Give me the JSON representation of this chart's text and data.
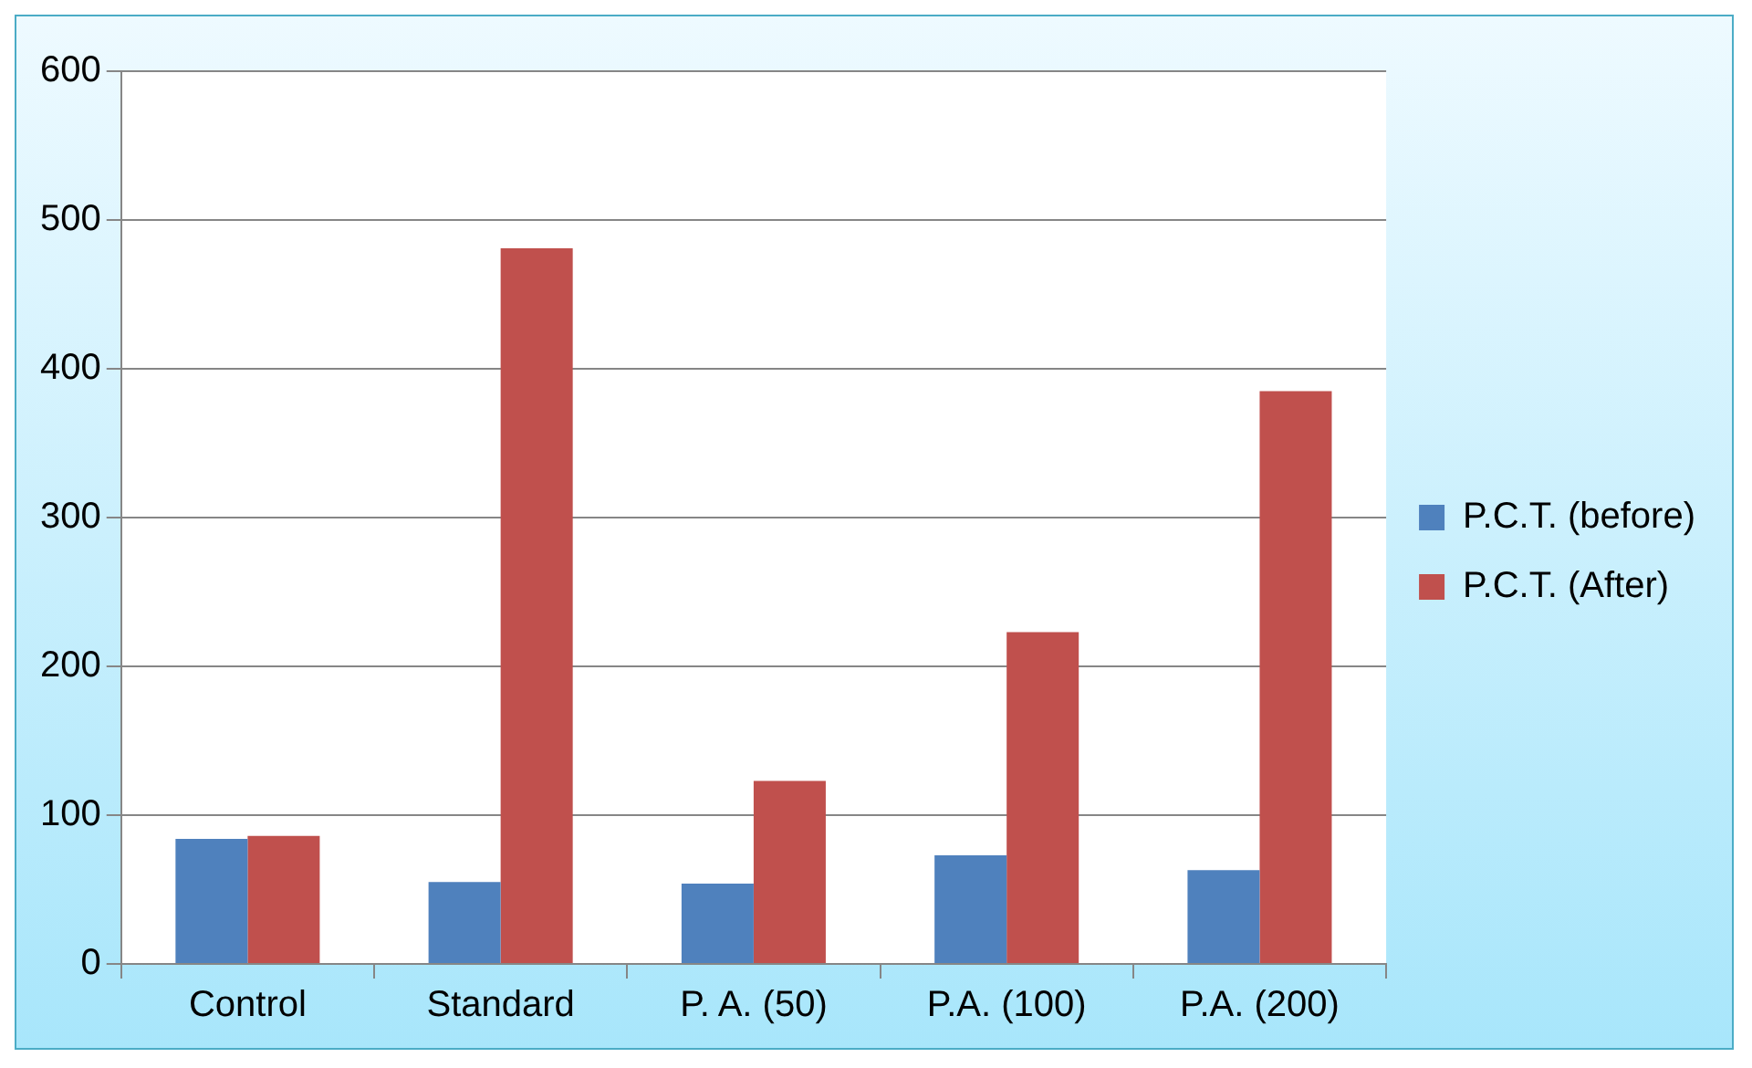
{
  "chart_data": {
    "type": "bar",
    "categories": [
      "Control",
      "Standard",
      "P. A. (50)",
      "P.A. (100)",
      "P.A. (200)"
    ],
    "series": [
      {
        "name": "P.C.T. (before)",
        "color": "#4f81bd",
        "values": [
          84,
          55,
          54,
          73,
          63
        ]
      },
      {
        "name": "P.C.T. (After)",
        "color": "#c0504d",
        "values": [
          86,
          481,
          123,
          223,
          385
        ]
      }
    ],
    "ylim": [
      0,
      600
    ],
    "yticks": [
      0,
      100,
      200,
      300,
      400,
      500,
      600
    ],
    "grid": "y",
    "legend": "right"
  }
}
